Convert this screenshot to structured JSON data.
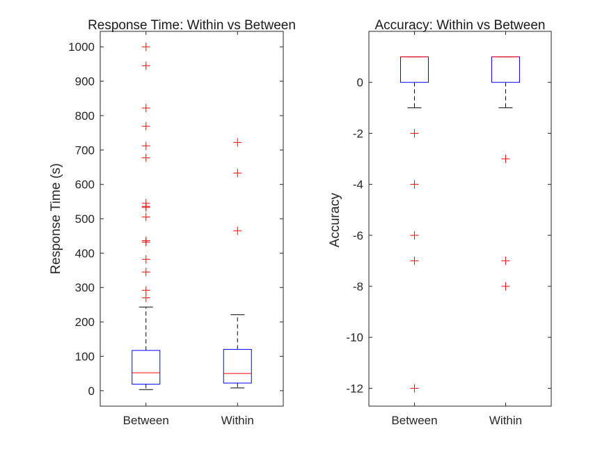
{
  "chart_data": [
    {
      "type": "boxplot",
      "title": "Response Time: Within vs Between",
      "xlabel": "",
      "ylabel": "Response Time (s)",
      "ylim": [
        -45,
        1045
      ],
      "yticks": [
        0,
        100,
        200,
        300,
        400,
        500,
        600,
        700,
        800,
        900,
        1000
      ],
      "categories": [
        "Between",
        "Within"
      ],
      "boxes": [
        {
          "name": "Between",
          "whisker_low": 3,
          "q1": 19,
          "median": 52,
          "q3": 117,
          "whisker_high": 243,
          "outliers": [
            270,
            292,
            345,
            382,
            432,
            436,
            505,
            533,
            536,
            545,
            677,
            712,
            769,
            822,
            945,
            1000
          ]
        },
        {
          "name": "Within",
          "whisker_low": 8,
          "q1": 22,
          "median": 50,
          "q3": 120,
          "whisker_high": 221,
          "outliers": [
            465,
            633,
            722
          ]
        }
      ],
      "colors": {
        "box": "#0000ff",
        "median": "#ff0000",
        "whisker": "#000000",
        "outlier": "#ff0000"
      }
    },
    {
      "type": "boxplot",
      "title": "Accuracy: Within vs Between",
      "xlabel": "",
      "ylabel": "Accuracy",
      "ylim": [
        -12.7,
        2
      ],
      "yticks": [
        -12,
        -10,
        -8,
        -6,
        -4,
        -2,
        0
      ],
      "categories": [
        "Between",
        "Within"
      ],
      "boxes": [
        {
          "name": "Between",
          "whisker_low": -1,
          "q1": 0,
          "median": 1,
          "q3": 1,
          "whisker_high": 1,
          "outliers": [
            -2,
            -4,
            -6,
            -7,
            -12
          ]
        },
        {
          "name": "Within",
          "whisker_low": -1,
          "q1": 0,
          "median": 1,
          "q3": 1,
          "whisker_high": 1,
          "outliers": [
            -3,
            -7,
            -8
          ]
        }
      ],
      "colors": {
        "box": "#0000ff",
        "median": "#ff0000",
        "whisker": "#000000",
        "outlier": "#ff0000"
      }
    }
  ]
}
